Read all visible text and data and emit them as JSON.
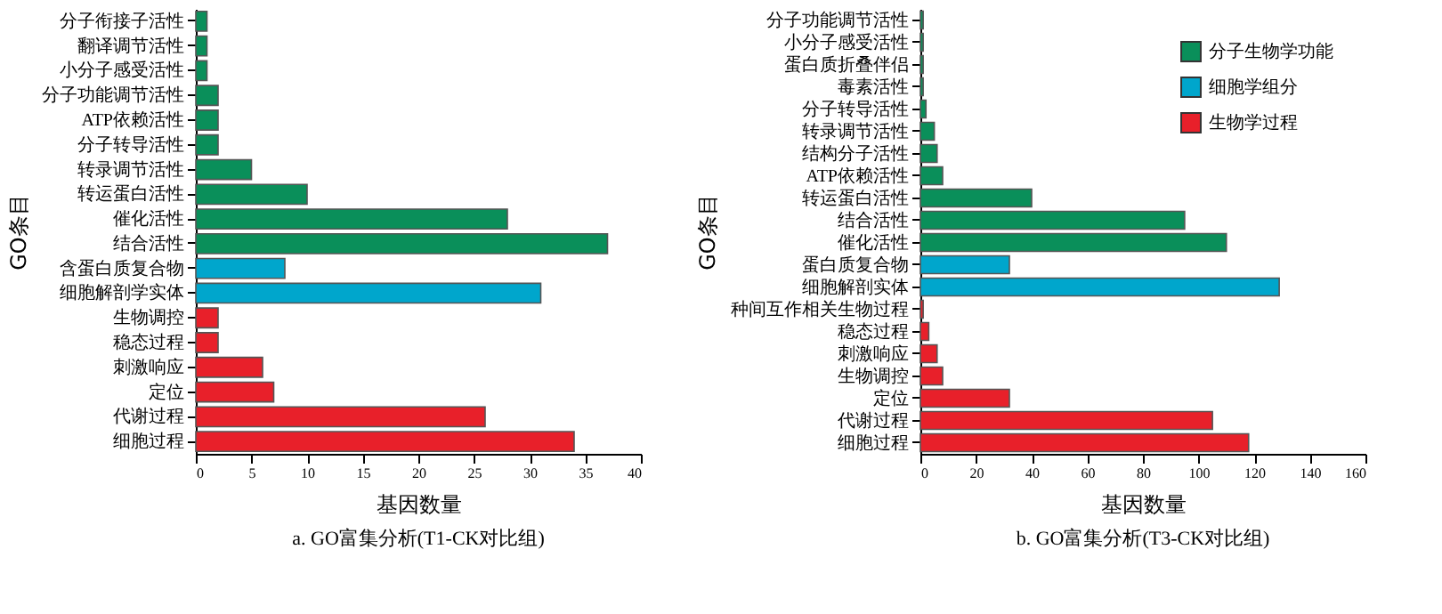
{
  "chart_data": [
    {
      "type": "bar",
      "orientation": "horizontal",
      "title": "a.  GO富集分析(T1-CK对比组)",
      "xlabel": "基因数量",
      "ylabel": "GO条目",
      "categories": [
        "分子衔接子活性",
        "翻译调节活性",
        "小分子感受活性",
        "分子功能调节活性",
        "ATP依赖活性",
        "分子转导活性",
        "转录调节活性",
        "转运蛋白活性",
        "催化活性",
        "结合活性",
        "含蛋白质复合物",
        "细胞解剖学实体",
        "生物调控",
        "稳态过程",
        "刺激响应",
        "定位",
        "代谢过程",
        "细胞过程"
      ],
      "series": [
        {
          "color": "#0a8f5a",
          "values": [
            1,
            1,
            1,
            2,
            2,
            2,
            5,
            10,
            28,
            37,
            null,
            null,
            null,
            null,
            null,
            null,
            null,
            null
          ]
        },
        {
          "color": "#00a6cc",
          "values": [
            null,
            null,
            null,
            null,
            null,
            null,
            null,
            null,
            null,
            null,
            8,
            31,
            null,
            null,
            null,
            null,
            null,
            null
          ]
        },
        {
          "color": "#e8202a",
          "values": [
            null,
            null,
            null,
            null,
            null,
            null,
            null,
            null,
            null,
            null,
            null,
            null,
            2,
            2,
            6,
            7,
            26,
            34
          ]
        }
      ],
      "xlim": [
        0,
        40
      ],
      "xticks": [
        0,
        5,
        10,
        15,
        20,
        25,
        30,
        35,
        40
      ],
      "grid": false
    },
    {
      "type": "bar",
      "orientation": "horizontal",
      "title": "b.  GO富集分析(T3-CK对比组)",
      "xlabel": "基因数量",
      "ylabel": "GO条目",
      "categories": [
        "分子功能调节活性",
        "小分子感受活性",
        "蛋白质折叠伴侣",
        "毒素活性",
        "分子转导活性",
        "转录调节活性",
        "结构分子活性",
        "ATP依赖活性",
        "转运蛋白活性",
        "结合活性",
        "催化活性",
        "蛋白质复合物",
        "细胞解剖实体",
        "种间互作相关生物过程",
        "稳态过程",
        "刺激响应",
        "生物调控",
        "定位",
        "代谢过程",
        "细胞过程"
      ],
      "series": [
        {
          "name": "分子生物学功能",
          "color": "#0a8f5a",
          "values": [
            1,
            1,
            1,
            1,
            2,
            5,
            6,
            8,
            40,
            95,
            110,
            null,
            null,
            null,
            null,
            null,
            null,
            null,
            null,
            null
          ]
        },
        {
          "name": "细胞学组分",
          "color": "#00a6cc",
          "values": [
            null,
            null,
            null,
            null,
            null,
            null,
            null,
            null,
            null,
            null,
            null,
            32,
            129,
            null,
            null,
            null,
            null,
            null,
            null,
            null
          ]
        },
        {
          "name": "生物学过程",
          "color": "#e8202a",
          "values": [
            null,
            null,
            null,
            null,
            null,
            null,
            null,
            null,
            null,
            null,
            null,
            null,
            null,
            1,
            3,
            6,
            8,
            32,
            105,
            118
          ]
        }
      ],
      "xlim": [
        0,
        160
      ],
      "xticks": [
        0,
        20,
        40,
        60,
        80,
        100,
        120,
        140,
        160
      ],
      "grid": false,
      "legend": "top right"
    }
  ]
}
